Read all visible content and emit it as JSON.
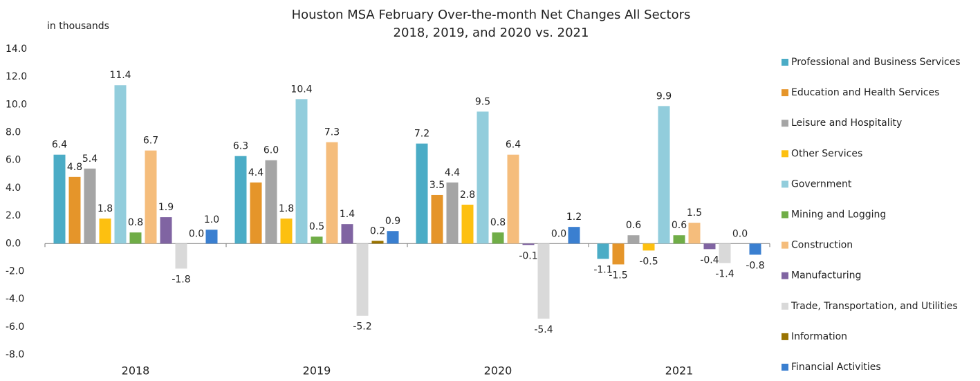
{
  "chart_data": {
    "type": "bar",
    "title": "Houston MSA February Over-the-month Net Changes All Sectors",
    "subtitle": "2018, 2019, and 2020 vs. 2021",
    "y_label": "in thousands",
    "categories": [
      "2018",
      "2019",
      "2020",
      "2021"
    ],
    "ylim": [
      -8,
      14
    ],
    "yticks": [
      {
        "value": -8,
        "label": "-8.0"
      },
      {
        "value": -6,
        "label": "-6.0"
      },
      {
        "value": -4,
        "label": "-4.0"
      },
      {
        "value": -2,
        "label": "-2.0"
      },
      {
        "value": 0,
        "label": "0.0"
      },
      {
        "value": 2,
        "label": "2.0"
      },
      {
        "value": 4,
        "label": "4.0"
      },
      {
        "value": 6,
        "label": "6.0"
      },
      {
        "value": 8,
        "label": "8.0"
      },
      {
        "value": 10,
        "label": "10.0"
      },
      {
        "value": 12,
        "label": "12.0"
      },
      {
        "value": 14,
        "label": "14.0"
      }
    ],
    "legend": "right",
    "series": [
      {
        "name": "Professional and Business Services",
        "color": "#4bacc6",
        "values": [
          6.4,
          6.3,
          7.2,
          -1.1
        ],
        "value_labels": [
          "6.4",
          "6.3",
          "7.2",
          "-1.1"
        ]
      },
      {
        "name": "Education and Health Services",
        "color": "#e5952a",
        "values": [
          4.8,
          4.4,
          3.5,
          -1.5
        ],
        "value_labels": [
          "4.8",
          "4.4",
          "3.5",
          "-1.5"
        ]
      },
      {
        "name": "Leisure and Hospitality",
        "color": "#a5a5a5",
        "values": [
          5.4,
          6.0,
          4.4,
          0.6
        ],
        "value_labels": [
          "5.4",
          "6.0",
          "4.4",
          "0.6"
        ]
      },
      {
        "name": "Other Services",
        "color": "#fdc010",
        "values": [
          1.8,
          1.8,
          2.8,
          -0.5
        ],
        "value_labels": [
          "1.8",
          "1.8",
          "2.8",
          "-0.5"
        ]
      },
      {
        "name": "Government",
        "color": "#92cddc",
        "values": [
          11.4,
          10.4,
          9.5,
          9.9
        ],
        "value_labels": [
          "11.4",
          "10.4",
          "9.5",
          "9.9"
        ]
      },
      {
        "name": "Mining and Logging",
        "color": "#70ad47",
        "values": [
          0.8,
          0.5,
          0.8,
          0.6
        ],
        "value_labels": [
          "0.8",
          "0.5",
          "0.8",
          "0.6"
        ]
      },
      {
        "name": "Construction",
        "color": "#f5bd7c",
        "values": [
          6.7,
          7.3,
          6.4,
          1.5
        ],
        "value_labels": [
          "6.7",
          "7.3",
          "6.4",
          "1.5"
        ]
      },
      {
        "name": "Manufacturing",
        "color": "#8064a2",
        "values": [
          1.9,
          1.4,
          -0.1,
          -0.4
        ],
        "value_labels": [
          "1.9",
          "1.4",
          "-0.1",
          "-0.4"
        ]
      },
      {
        "name": "Trade, Transportation, and Utilities",
        "color": "#d9d9d9",
        "values": [
          -1.8,
          -5.2,
          -5.4,
          -1.4
        ],
        "value_labels": [
          "-1.8",
          "-5.2",
          "-5.4",
          "-1.4"
        ]
      },
      {
        "name": "Information",
        "color": "#997300",
        "values": [
          0.0,
          0.2,
          0.0,
          0.0
        ],
        "value_labels": [
          "0.0",
          "0.2",
          "0.0",
          "0.0"
        ]
      },
      {
        "name": "Financial Activities",
        "color": "#3a7fd0",
        "values": [
          1.0,
          0.9,
          1.2,
          -0.8
        ],
        "value_labels": [
          "1.0",
          "0.9",
          "1.2",
          "-0.8"
        ]
      }
    ]
  }
}
